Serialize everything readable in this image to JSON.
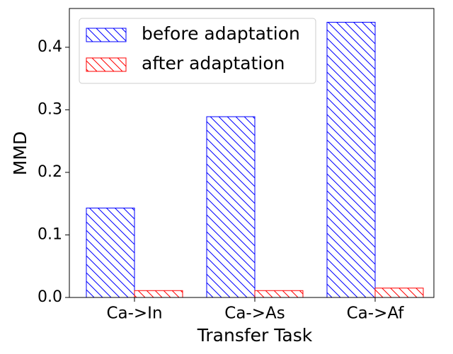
{
  "chart_data": {
    "type": "bar",
    "xlabel": "Transfer Task",
    "ylabel": "MMD",
    "categories": [
      "Ca->In",
      "Ca->As",
      "Ca->Af"
    ],
    "series": [
      {
        "name": "before adaptation",
        "color": "#0000ff",
        "values": [
          0.143,
          0.289,
          0.44
        ]
      },
      {
        "name": "after adaptation",
        "color": "#ff0000",
        "values": [
          0.011,
          0.011,
          0.015
        ]
      }
    ],
    "ylim": [
      0,
      0.462
    ],
    "yticks": [
      {
        "value": 0,
        "label": "0.0"
      },
      0.1,
      0.2,
      0.3,
      0.4
    ],
    "hatch": true,
    "legend": "upper left"
  }
}
